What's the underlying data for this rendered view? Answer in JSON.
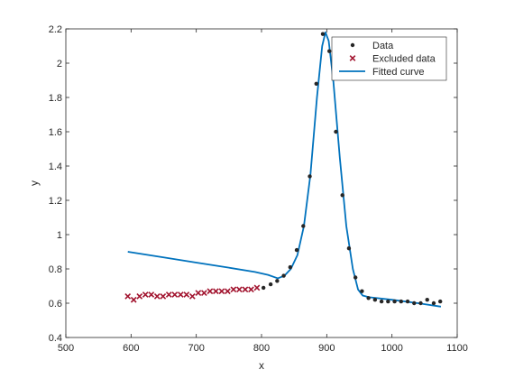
{
  "chart_data": {
    "type": "scatter",
    "title": "",
    "xlabel": "x",
    "ylabel": "y",
    "xlim": [
      500,
      1100
    ],
    "ylim": [
      0.4,
      2.2
    ],
    "xticks": [
      "500",
      "600",
      "700",
      "800",
      "900",
      "1000",
      "1100"
    ],
    "yticks": [
      "0.4",
      "0.6",
      "0.8",
      "1",
      "1.2",
      "1.4",
      "1.6",
      "1.8",
      "2",
      "2.2"
    ],
    "grid": false,
    "legend_position": "top-right",
    "series": [
      {
        "name": "Data",
        "kind": "points",
        "marker": "dot",
        "color": "#262626",
        "points": [
          [
            803,
            0.69
          ],
          [
            814,
            0.71
          ],
          [
            824,
            0.73
          ],
          [
            834,
            0.76
          ],
          [
            844,
            0.81
          ],
          [
            854,
            0.91
          ],
          [
            864,
            1.05
          ],
          [
            874,
            1.34
          ],
          [
            884,
            1.88
          ],
          [
            894,
            2.17
          ],
          [
            904,
            2.07
          ],
          [
            914,
            1.6
          ],
          [
            924,
            1.23
          ],
          [
            934,
            0.92
          ],
          [
            944,
            0.75
          ],
          [
            954,
            0.67
          ],
          [
            964,
            0.63
          ],
          [
            974,
            0.62
          ],
          [
            984,
            0.61
          ],
          [
            994,
            0.61
          ],
          [
            1004,
            0.61
          ],
          [
            1014,
            0.61
          ],
          [
            1024,
            0.61
          ],
          [
            1034,
            0.6
          ],
          [
            1044,
            0.6
          ],
          [
            1054,
            0.62
          ],
          [
            1064,
            0.6
          ],
          [
            1074,
            0.61
          ]
        ]
      },
      {
        "name": "Excluded data",
        "kind": "points",
        "marker": "x",
        "color": "#A2142F",
        "points": [
          [
            595,
            0.64
          ],
          [
            604,
            0.62
          ],
          [
            613,
            0.64
          ],
          [
            622,
            0.65
          ],
          [
            631,
            0.65
          ],
          [
            640,
            0.64
          ],
          [
            649,
            0.64
          ],
          [
            658,
            0.65
          ],
          [
            667,
            0.65
          ],
          [
            676,
            0.65
          ],
          [
            685,
            0.65
          ],
          [
            694,
            0.64
          ],
          [
            703,
            0.66
          ],
          [
            712,
            0.66
          ],
          [
            721,
            0.67
          ],
          [
            730,
            0.67
          ],
          [
            739,
            0.67
          ],
          [
            748,
            0.67
          ],
          [
            757,
            0.68
          ],
          [
            766,
            0.68
          ],
          [
            775,
            0.68
          ],
          [
            784,
            0.68
          ],
          [
            793,
            0.69
          ]
        ]
      },
      {
        "name": "Fitted curve",
        "kind": "line",
        "color": "#0072BD",
        "points": [
          [
            595,
            0.9
          ],
          [
            650,
            0.867
          ],
          [
            700,
            0.837
          ],
          [
            750,
            0.807
          ],
          [
            790,
            0.782
          ],
          [
            810,
            0.765
          ],
          [
            825,
            0.745
          ],
          [
            835,
            0.76
          ],
          [
            845,
            0.8
          ],
          [
            855,
            0.88
          ],
          [
            865,
            1.05
          ],
          [
            875,
            1.35
          ],
          [
            885,
            1.8
          ],
          [
            893,
            2.1
          ],
          [
            898,
            2.18
          ],
          [
            903,
            2.13
          ],
          [
            910,
            1.9
          ],
          [
            920,
            1.45
          ],
          [
            930,
            1.05
          ],
          [
            940,
            0.8
          ],
          [
            948,
            0.68
          ],
          [
            955,
            0.645
          ],
          [
            965,
            0.635
          ],
          [
            1000,
            0.62
          ],
          [
            1040,
            0.6
          ],
          [
            1075,
            0.58
          ]
        ]
      }
    ]
  }
}
